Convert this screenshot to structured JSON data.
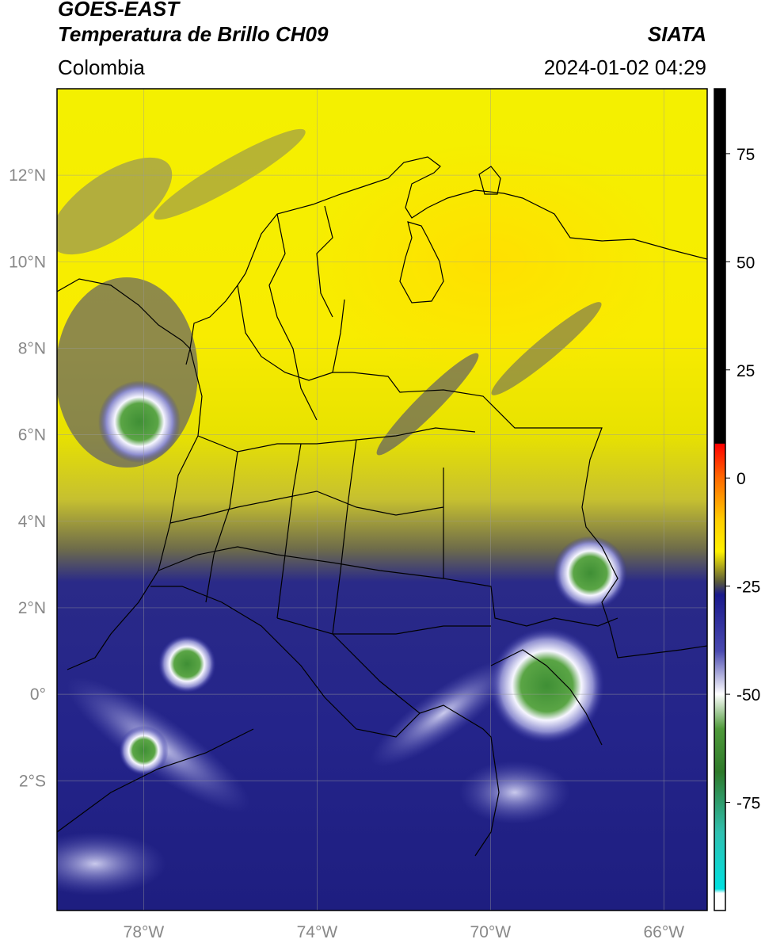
{
  "header": {
    "satellite": "GOES-EAST",
    "product": "Temperatura de Brillo CH09",
    "brand": "SIATA",
    "region": "Colombia",
    "timestamp": "2024-01-02 04:29"
  },
  "map": {
    "lon_range": [
      -80.0,
      -65.0
    ],
    "lat_range": [
      -5.0,
      14.0
    ],
    "lat_ticks": [
      {
        "value": 12,
        "label": "12°N"
      },
      {
        "value": 10,
        "label": "10°N"
      },
      {
        "value": 8,
        "label": "8°N"
      },
      {
        "value": 6,
        "label": "6°N"
      },
      {
        "value": 4,
        "label": "4°N"
      },
      {
        "value": 2,
        "label": "2°N"
      },
      {
        "value": 0,
        "label": "0°"
      },
      {
        "value": -2,
        "label": "2°S"
      }
    ],
    "lon_ticks": [
      {
        "value": -78,
        "label": "78°W"
      },
      {
        "value": -74,
        "label": "74°W"
      },
      {
        "value": -70,
        "label": "70°W"
      },
      {
        "value": -66,
        "label": "66°W"
      }
    ],
    "grid": true
  },
  "colorbar": {
    "range": [
      -100,
      90
    ],
    "ticks": [
      {
        "value": 75,
        "label": "75"
      },
      {
        "value": 50,
        "label": "50"
      },
      {
        "value": 25,
        "label": "25"
      },
      {
        "value": 0,
        "label": "0"
      },
      {
        "value": -25,
        "label": "-25"
      },
      {
        "value": -50,
        "label": "-50"
      },
      {
        "value": -75,
        "label": "-75"
      }
    ],
    "stops": [
      {
        "value": 90,
        "color": "#000000"
      },
      {
        "value": 8,
        "color": "#000000"
      },
      {
        "value": 7.9,
        "color": "#ff0000"
      },
      {
        "value": 0,
        "color": "#ff6a00"
      },
      {
        "value": -10,
        "color": "#ffd000"
      },
      {
        "value": -17,
        "color": "#fff200"
      },
      {
        "value": -24,
        "color": "#5a5a3a"
      },
      {
        "value": -27,
        "color": "#1a1a8c"
      },
      {
        "value": -40,
        "color": "#4a4ab0"
      },
      {
        "value": -50,
        "color": "#ffffff"
      },
      {
        "value": -58,
        "color": "#4f9a3a"
      },
      {
        "value": -68,
        "color": "#2e7a2a"
      },
      {
        "value": -82,
        "color": "#30c0b0"
      },
      {
        "value": -95,
        "color": "#00e0e0"
      },
      {
        "value": -96,
        "color": "#ffffff"
      },
      {
        "value": -100,
        "color": "#ffffff"
      }
    ]
  },
  "imagery": {
    "deep_convection_cores": [
      {
        "lon": -78.1,
        "lat": 6.3,
        "r": 0.5
      },
      {
        "lon": -67.7,
        "lat": 2.8,
        "r": 0.45
      },
      {
        "lon": -68.7,
        "lat": 0.2,
        "r": 0.7
      },
      {
        "lon": -77.0,
        "lat": 0.7,
        "r": 0.35
      },
      {
        "lon": -78.0,
        "lat": -1.3,
        "r": 0.3
      }
    ]
  }
}
